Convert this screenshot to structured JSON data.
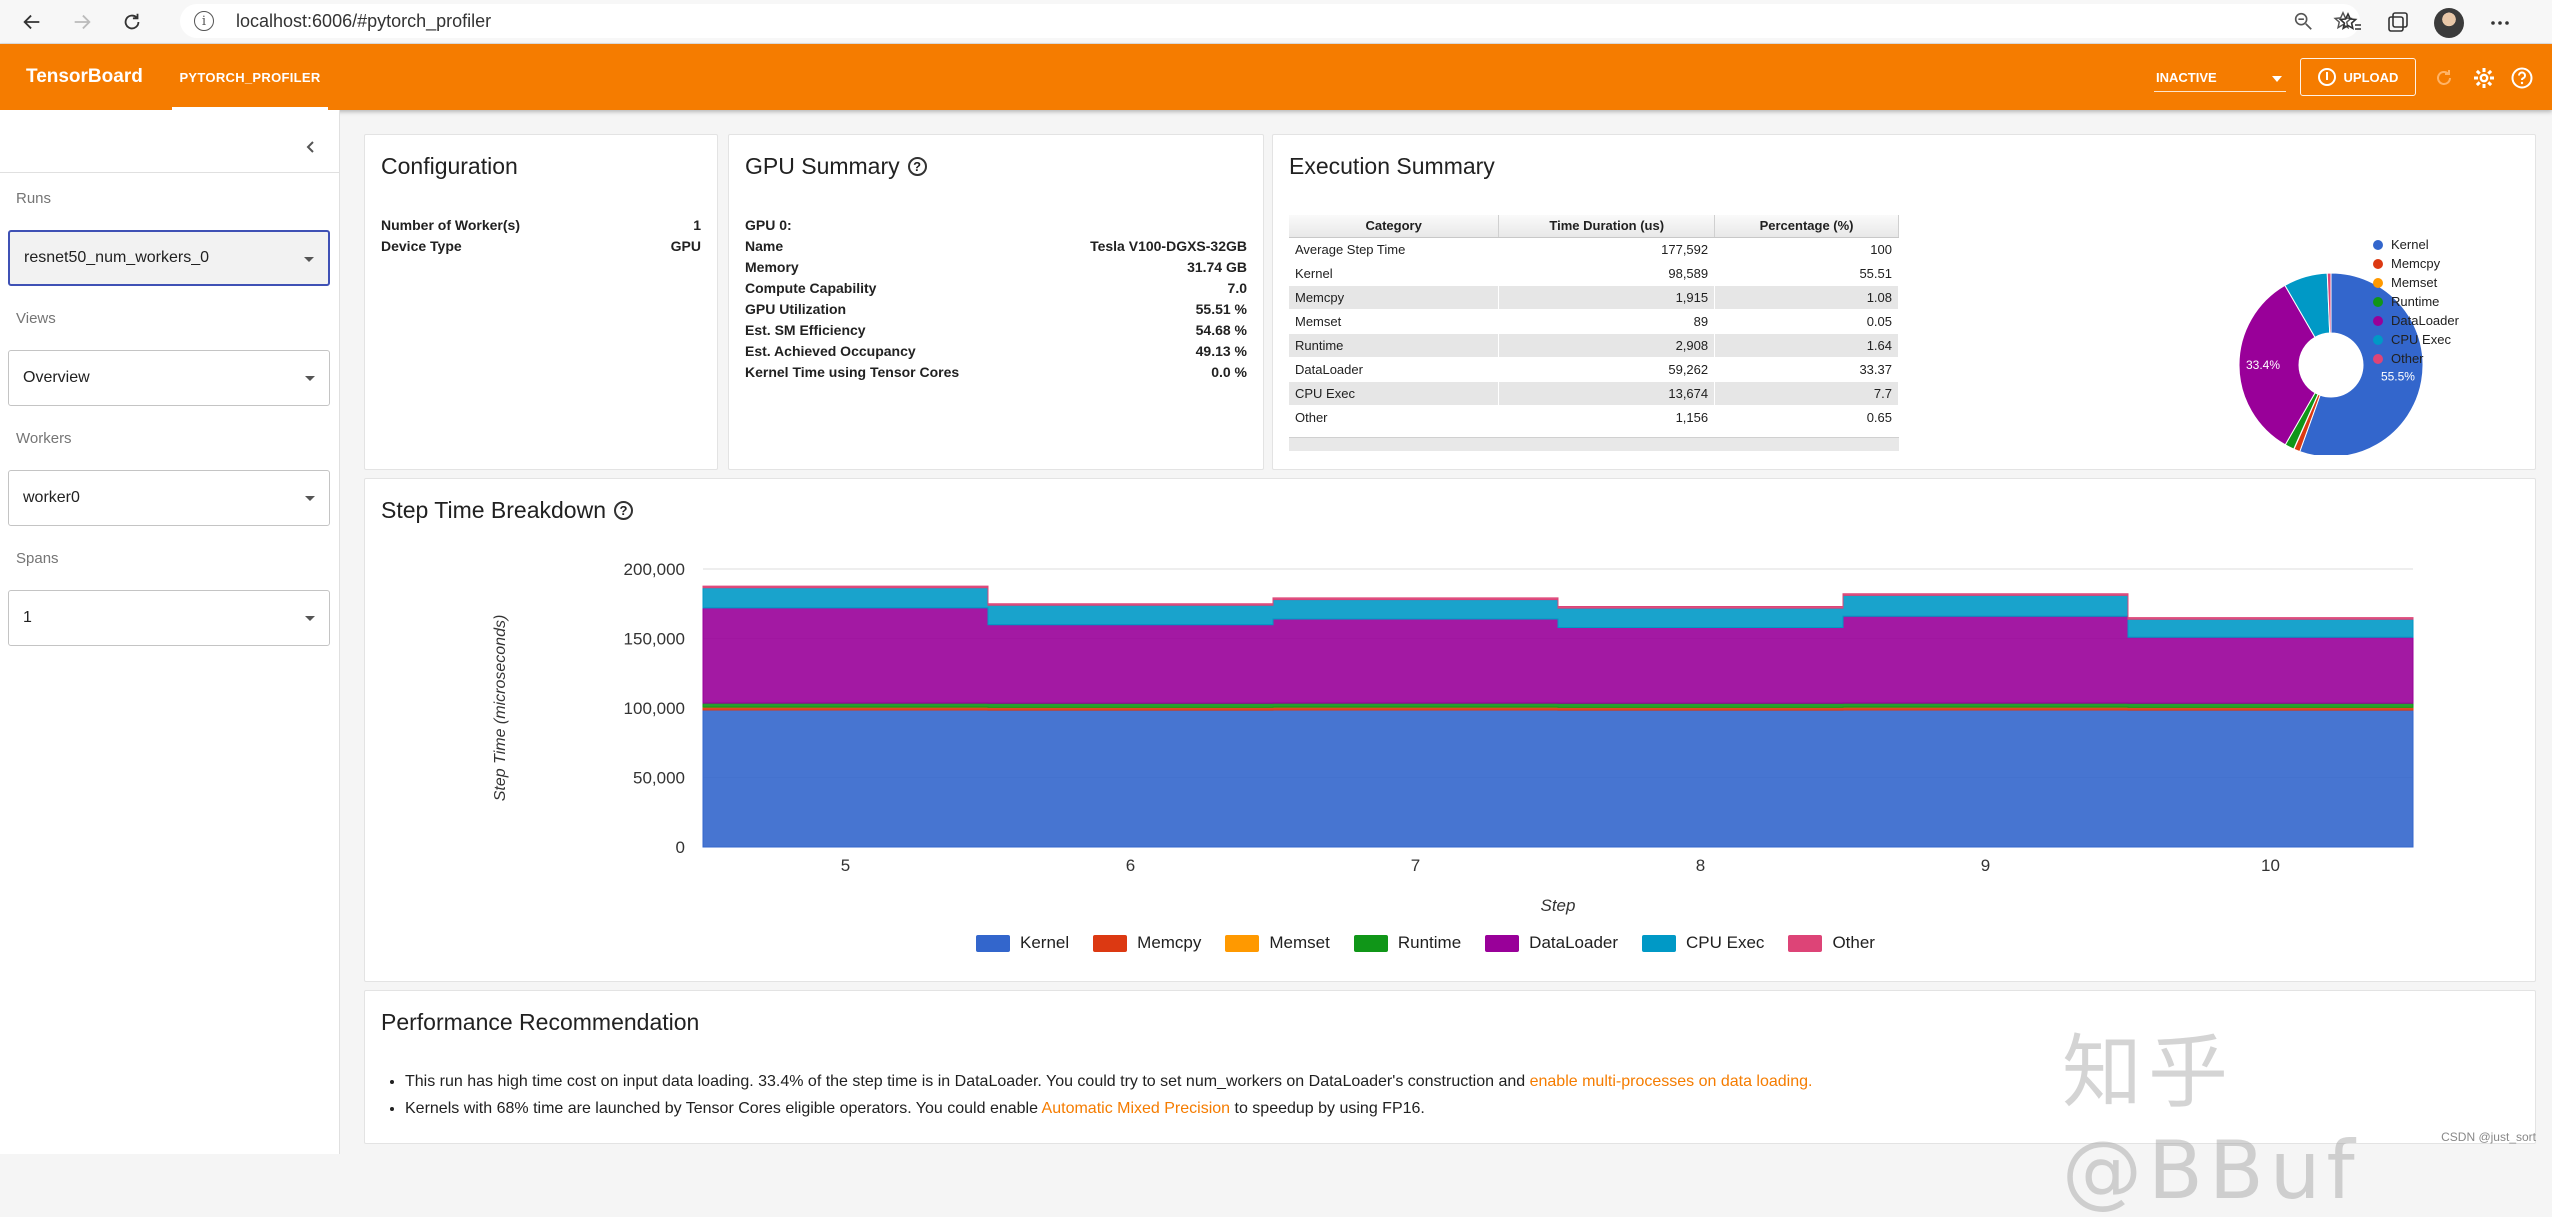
{
  "browser": {
    "url": "localhost:6006/#pytorch_profiler"
  },
  "header": {
    "logo": "TensorBoard",
    "tab": "PYTORCH_PROFILER",
    "status_select": "INACTIVE",
    "upload_label": "UPLOAD",
    "accent_color": "#f57c00"
  },
  "sidebar": {
    "runs_label": "Runs",
    "runs_value": "resnet50_num_workers_0",
    "views_label": "Views",
    "views_value": "Overview",
    "workers_label": "Workers",
    "workers_value": "worker0",
    "spans_label": "Spans",
    "spans_value": "1"
  },
  "configuration": {
    "title": "Configuration",
    "rows": [
      {
        "key": "Number of Worker(s)",
        "value": "1"
      },
      {
        "key": "Device Type",
        "value": "GPU"
      }
    ]
  },
  "gpu_summary": {
    "title": "GPU Summary",
    "rows": [
      {
        "key": "GPU 0:",
        "value": ""
      },
      {
        "key": "Name",
        "value": "Tesla V100-DGXS-32GB"
      },
      {
        "key": "Memory",
        "value": "31.74 GB"
      },
      {
        "key": "Compute Capability",
        "value": "7.0"
      },
      {
        "key": "GPU Utilization",
        "value": "55.51 %"
      },
      {
        "key": "Est. SM Efficiency",
        "value": "54.68 %"
      },
      {
        "key": "Est. Achieved Occupancy",
        "value": "49.13 %"
      },
      {
        "key": "Kernel Time using Tensor Cores",
        "value": "0.0 %"
      }
    ]
  },
  "execution_summary": {
    "title": "Execution Summary",
    "columns": [
      "Category",
      "Time Duration (us)",
      "Percentage (%)"
    ],
    "rows": [
      [
        "Average Step Time",
        "177,592",
        "100"
      ],
      [
        "Kernel",
        "98,589",
        "55.51"
      ],
      [
        "Memcpy",
        "1,915",
        "1.08"
      ],
      [
        "Memset",
        "89",
        "0.05"
      ],
      [
        "Runtime",
        "2,908",
        "1.64"
      ],
      [
        "DataLoader",
        "59,262",
        "33.37"
      ],
      [
        "CPU Exec",
        "13,674",
        "7.7"
      ],
      [
        "Other",
        "1,156",
        "0.65"
      ]
    ],
    "pie_labels": {
      "kernel": "55.5%",
      "dataloader": "33.4%"
    },
    "legend": [
      "Kernel",
      "Memcpy",
      "Memset",
      "Runtime",
      "DataLoader",
      "CPU Exec",
      "Other"
    ]
  },
  "colors": {
    "Kernel": "#3366cc",
    "Memcpy": "#dc3912",
    "Memset": "#ff9900",
    "Runtime": "#109618",
    "DataLoader": "#990099",
    "CPU Exec": "#0099c6",
    "Other": "#dd4477"
  },
  "step_time": {
    "title": "Step Time Breakdown"
  },
  "chart_data": {
    "type": "area",
    "stacked": true,
    "xlabel": "Step",
    "ylabel": "Step Time (microseconds)",
    "x": [
      5,
      6,
      7,
      8,
      9,
      10
    ],
    "ylim": [
      0,
      200000
    ],
    "yticks": [
      "0",
      "50,000",
      "100,000",
      "150,000",
      "200,000"
    ],
    "series": [
      {
        "name": "Kernel",
        "values": [
          98600,
          98500,
          98600,
          98500,
          98600,
          98500
        ]
      },
      {
        "name": "Memcpy",
        "values": [
          1900,
          1900,
          1900,
          1900,
          1900,
          1900
        ]
      },
      {
        "name": "Memset",
        "values": [
          90,
          90,
          90,
          90,
          90,
          90
        ]
      },
      {
        "name": "Runtime",
        "values": [
          2900,
          2900,
          2900,
          2900,
          2900,
          2900
        ]
      },
      {
        "name": "DataLoader",
        "values": [
          68500,
          56500,
          60500,
          54500,
          62500,
          47500
        ]
      },
      {
        "name": "CPU Exec",
        "values": [
          14500,
          14000,
          14000,
          14000,
          15000,
          13000
        ]
      },
      {
        "name": "Other",
        "values": [
          1200,
          1100,
          1200,
          1100,
          1200,
          1100
        ]
      }
    ],
    "legend_position": "bottom"
  },
  "performance": {
    "title": "Performance Recommendation",
    "item1_text": "This run has high time cost on input data loading. 33.4% of the step time is in DataLoader. You could try to set num_workers on DataLoader's construction and ",
    "item1_link": "enable multi-processes on data loading.",
    "item2_text_a": "Kernels with 68% time are launched by Tensor Cores eligible operators. You could enable ",
    "item2_link": "Automatic Mixed Precision",
    "item2_text_b": " to speedup by using FP16."
  },
  "watermark": "知乎 @BBuf",
  "footer_mark": "CSDN @just_sort"
}
